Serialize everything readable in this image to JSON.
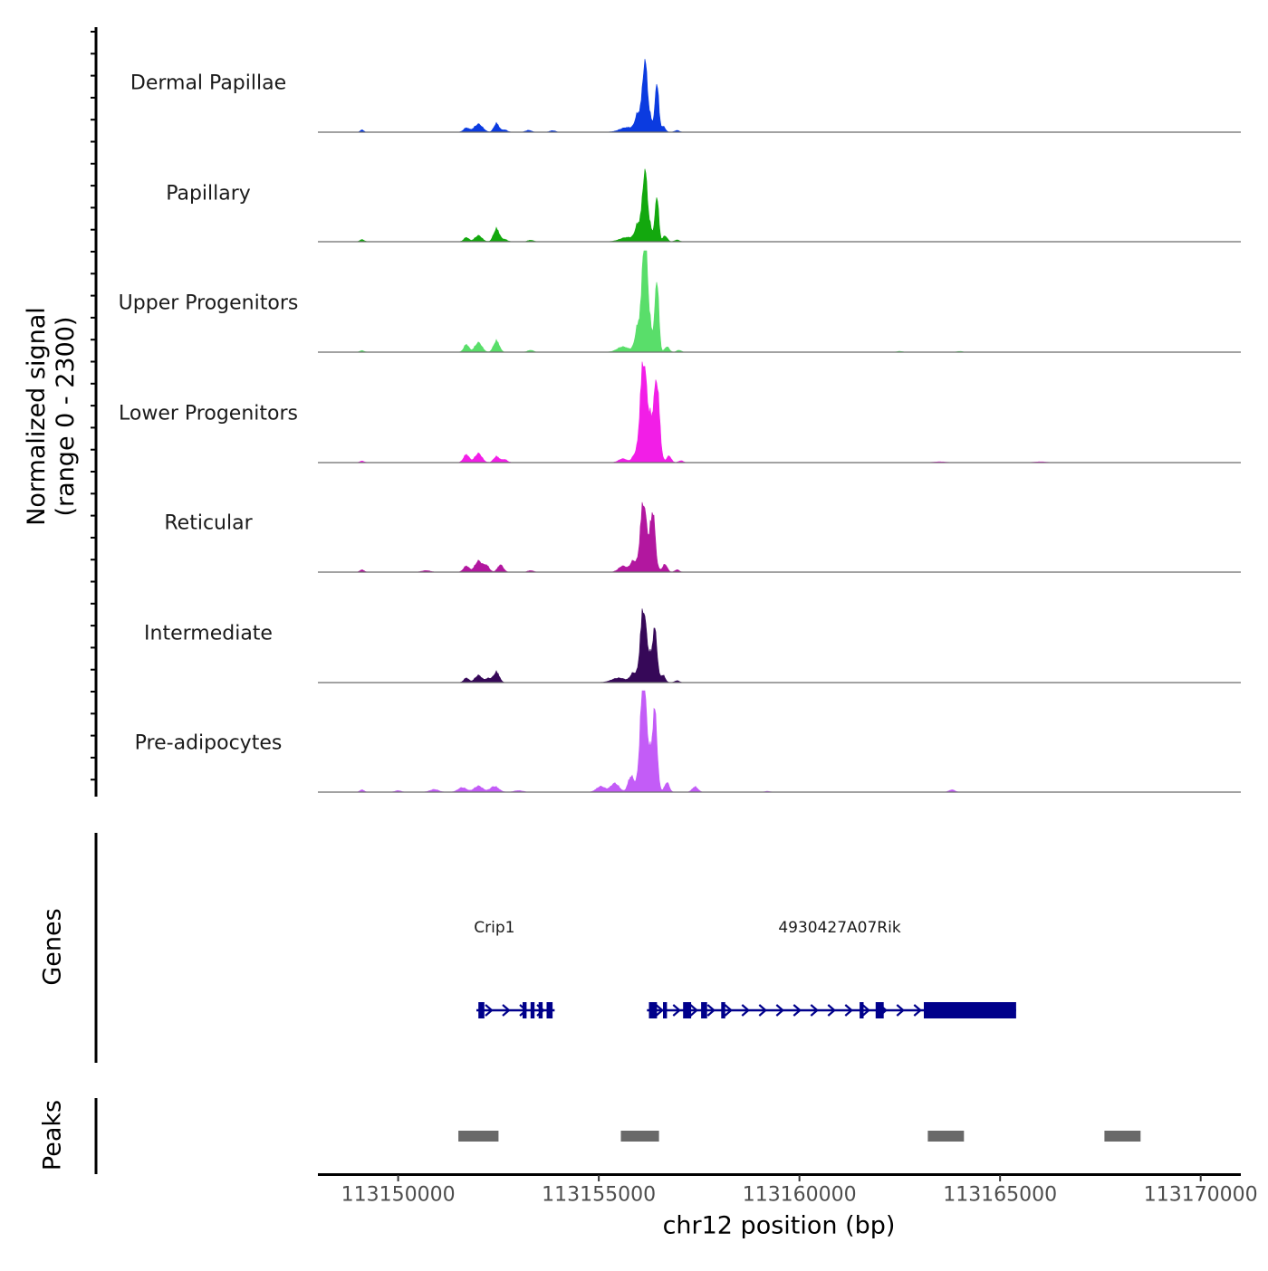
{
  "chart_data": {
    "type": "area",
    "title": "",
    "ylabel_line1": "Normalized signal",
    "ylabel_line2": "(range 0 - 2300)",
    "y_range": [
      0,
      2300
    ],
    "xlabel": "chr12 position (bp)",
    "xlim": [
      113148000,
      113171000
    ],
    "x_ticks": [
      113150000,
      113155000,
      113160000,
      113165000,
      113170000
    ],
    "x_tick_labels": [
      "113150000",
      "113155000",
      "113160000",
      "113165000",
      "113170000"
    ],
    "baseline_color": "#6b6b6b",
    "peak_fill_color": "#696969",
    "gene_color": "#00008b",
    "tracks": [
      {
        "name": "Dermal Papillae",
        "color": "#0b3be0",
        "max_value": 1650,
        "peaks": [
          {
            "center": 113149100,
            "width": 120,
            "height": 60
          },
          {
            "center": 113151700,
            "width": 200,
            "height": 110
          },
          {
            "center": 113152000,
            "width": 300,
            "height": 210
          },
          {
            "center": 113152450,
            "width": 180,
            "height": 230
          },
          {
            "center": 113152650,
            "width": 200,
            "height": 60
          },
          {
            "center": 113153250,
            "width": 200,
            "height": 50
          },
          {
            "center": 113153850,
            "width": 200,
            "height": 40
          },
          {
            "center": 113155700,
            "width": 500,
            "height": 120
          },
          {
            "center": 113155950,
            "width": 150,
            "height": 200
          },
          {
            "center": 113156150,
            "width": 150,
            "height": 1150
          },
          {
            "center": 113156450,
            "width": 120,
            "height": 1250
          },
          {
            "center": 113156150,
            "width": 380,
            "height": 700
          },
          {
            "center": 113156600,
            "width": 160,
            "height": 150
          },
          {
            "center": 113156950,
            "width": 160,
            "height": 45
          }
        ]
      },
      {
        "name": "Papillary",
        "color": "#13a80e",
        "max_value": 1650,
        "peaks": [
          {
            "center": 113149100,
            "width": 150,
            "height": 55
          },
          {
            "center": 113151700,
            "width": 180,
            "height": 110
          },
          {
            "center": 113152000,
            "width": 250,
            "height": 160
          },
          {
            "center": 113152450,
            "width": 200,
            "height": 340
          },
          {
            "center": 113152650,
            "width": 200,
            "height": 60
          },
          {
            "center": 113153300,
            "width": 200,
            "height": 40
          },
          {
            "center": 113155700,
            "width": 500,
            "height": 110
          },
          {
            "center": 113155950,
            "width": 150,
            "height": 180
          },
          {
            "center": 113156150,
            "width": 150,
            "height": 1150
          },
          {
            "center": 113156450,
            "width": 120,
            "height": 1150
          },
          {
            "center": 113156150,
            "width": 380,
            "height": 700
          },
          {
            "center": 113156650,
            "width": 160,
            "height": 150
          },
          {
            "center": 113156950,
            "width": 160,
            "height": 45
          }
        ]
      },
      {
        "name": "Upper Progenitors",
        "color": "#59de6a",
        "max_value": 2300,
        "peaks": [
          {
            "center": 113149100,
            "width": 150,
            "height": 40
          },
          {
            "center": 113151700,
            "width": 180,
            "height": 200
          },
          {
            "center": 113152000,
            "width": 250,
            "height": 250
          },
          {
            "center": 113152450,
            "width": 200,
            "height": 300
          },
          {
            "center": 113153300,
            "width": 200,
            "height": 50
          },
          {
            "center": 113155600,
            "width": 400,
            "height": 140
          },
          {
            "center": 113155950,
            "width": 150,
            "height": 230
          },
          {
            "center": 113156150,
            "width": 150,
            "height": 2100
          },
          {
            "center": 113156450,
            "width": 130,
            "height": 1800
          },
          {
            "center": 113156150,
            "width": 380,
            "height": 1300
          },
          {
            "center": 113156700,
            "width": 160,
            "height": 140
          },
          {
            "center": 113157000,
            "width": 160,
            "height": 50
          },
          {
            "center": 113162500,
            "width": 200,
            "height": 20
          },
          {
            "center": 113164000,
            "width": 200,
            "height": 20
          }
        ]
      },
      {
        "name": "Lower Progenitors",
        "color": "#f21ee7",
        "max_value": 2300,
        "peaks": [
          {
            "center": 113149100,
            "width": 150,
            "height": 40
          },
          {
            "center": 113151700,
            "width": 200,
            "height": 210
          },
          {
            "center": 113152000,
            "width": 250,
            "height": 240
          },
          {
            "center": 113152450,
            "width": 200,
            "height": 160
          },
          {
            "center": 113152650,
            "width": 200,
            "height": 80
          },
          {
            "center": 113155600,
            "width": 300,
            "height": 100
          },
          {
            "center": 113155900,
            "width": 200,
            "height": 170
          },
          {
            "center": 113156100,
            "width": 200,
            "height": 1950
          },
          {
            "center": 113156450,
            "width": 180,
            "height": 1700
          },
          {
            "center": 113156250,
            "width": 400,
            "height": 1200
          },
          {
            "center": 113156750,
            "width": 160,
            "height": 170
          },
          {
            "center": 113157050,
            "width": 160,
            "height": 50
          },
          {
            "center": 113163500,
            "width": 400,
            "height": 20
          },
          {
            "center": 113166000,
            "width": 400,
            "height": 20
          }
        ]
      },
      {
        "name": "Reticular",
        "color": "#b2179f",
        "max_value": 1650,
        "peaks": [
          {
            "center": 113149100,
            "width": 150,
            "height": 60
          },
          {
            "center": 113150700,
            "width": 300,
            "height": 40
          },
          {
            "center": 113151700,
            "width": 200,
            "height": 160
          },
          {
            "center": 113152000,
            "width": 250,
            "height": 290
          },
          {
            "center": 113152200,
            "width": 200,
            "height": 170
          },
          {
            "center": 113152550,
            "width": 200,
            "height": 190
          },
          {
            "center": 113153300,
            "width": 200,
            "height": 40
          },
          {
            "center": 113155600,
            "width": 300,
            "height": 160
          },
          {
            "center": 113155850,
            "width": 200,
            "height": 250
          },
          {
            "center": 113156100,
            "width": 180,
            "height": 1200
          },
          {
            "center": 113156350,
            "width": 150,
            "height": 1150
          },
          {
            "center": 113156200,
            "width": 400,
            "height": 800
          },
          {
            "center": 113156650,
            "width": 160,
            "height": 200
          },
          {
            "center": 113156950,
            "width": 160,
            "height": 60
          }
        ]
      },
      {
        "name": "Intermediate",
        "color": "#360858",
        "max_value": 1650,
        "peaks": [
          {
            "center": 113151700,
            "width": 180,
            "height": 120
          },
          {
            "center": 113152000,
            "width": 250,
            "height": 190
          },
          {
            "center": 113152250,
            "width": 200,
            "height": 110
          },
          {
            "center": 113152450,
            "width": 200,
            "height": 280
          },
          {
            "center": 113155500,
            "width": 500,
            "height": 120
          },
          {
            "center": 113155850,
            "width": 200,
            "height": 200
          },
          {
            "center": 113156100,
            "width": 180,
            "height": 1300
          },
          {
            "center": 113156400,
            "width": 150,
            "height": 1100
          },
          {
            "center": 113156200,
            "width": 400,
            "height": 800
          },
          {
            "center": 113156600,
            "width": 160,
            "height": 180
          },
          {
            "center": 113156950,
            "width": 160,
            "height": 50
          }
        ]
      },
      {
        "name": "Pre-adipocytes",
        "color": "#c35cf7",
        "max_value": 2300,
        "peaks": [
          {
            "center": 113149100,
            "width": 150,
            "height": 60
          },
          {
            "center": 113150000,
            "width": 200,
            "height": 40
          },
          {
            "center": 113150900,
            "width": 300,
            "height": 70
          },
          {
            "center": 113151600,
            "width": 300,
            "height": 120
          },
          {
            "center": 113152000,
            "width": 300,
            "height": 160
          },
          {
            "center": 113152400,
            "width": 300,
            "height": 150
          },
          {
            "center": 113153000,
            "width": 300,
            "height": 40
          },
          {
            "center": 113155050,
            "width": 300,
            "height": 150
          },
          {
            "center": 113155400,
            "width": 300,
            "height": 230
          },
          {
            "center": 113155800,
            "width": 200,
            "height": 400
          },
          {
            "center": 113156100,
            "width": 180,
            "height": 2100
          },
          {
            "center": 113156400,
            "width": 150,
            "height": 1700
          },
          {
            "center": 113156200,
            "width": 400,
            "height": 1200
          },
          {
            "center": 113156700,
            "width": 160,
            "height": 250
          },
          {
            "center": 113157400,
            "width": 200,
            "height": 140
          },
          {
            "center": 113159200,
            "width": 200,
            "height": 20
          },
          {
            "center": 113163800,
            "width": 200,
            "height": 60
          }
        ]
      }
    ],
    "genes": [
      {
        "name": "Crip1",
        "strand": "+",
        "start": 113151950,
        "end": 113153900,
        "label_position": 113152400,
        "exons": [
          [
            113152000,
            113152150
          ],
          [
            113153100,
            113153200
          ],
          [
            113153300,
            113153400
          ],
          [
            113153500,
            113153600
          ],
          [
            113153700,
            113153850
          ]
        ]
      },
      {
        "name": "4930427A07Rik",
        "strand": "+",
        "start": 113156200,
        "end": 113165400,
        "label_position": 113161000,
        "exons": [
          [
            113156250,
            113156450
          ],
          [
            113156600,
            113156700
          ],
          [
            113157100,
            113157300
          ],
          [
            113157550,
            113157700
          ],
          [
            113158050,
            113158150
          ],
          [
            113161500,
            113161600
          ],
          [
            113161900,
            113162100
          ],
          [
            113163100,
            113165400
          ]
        ]
      }
    ],
    "peaks_track": [
      {
        "start": 113151500,
        "end": 113152500
      },
      {
        "start": 113155550,
        "end": 113156500
      },
      {
        "start": 113163200,
        "end": 113164100
      },
      {
        "start": 113167600,
        "end": 113168500
      }
    ]
  }
}
